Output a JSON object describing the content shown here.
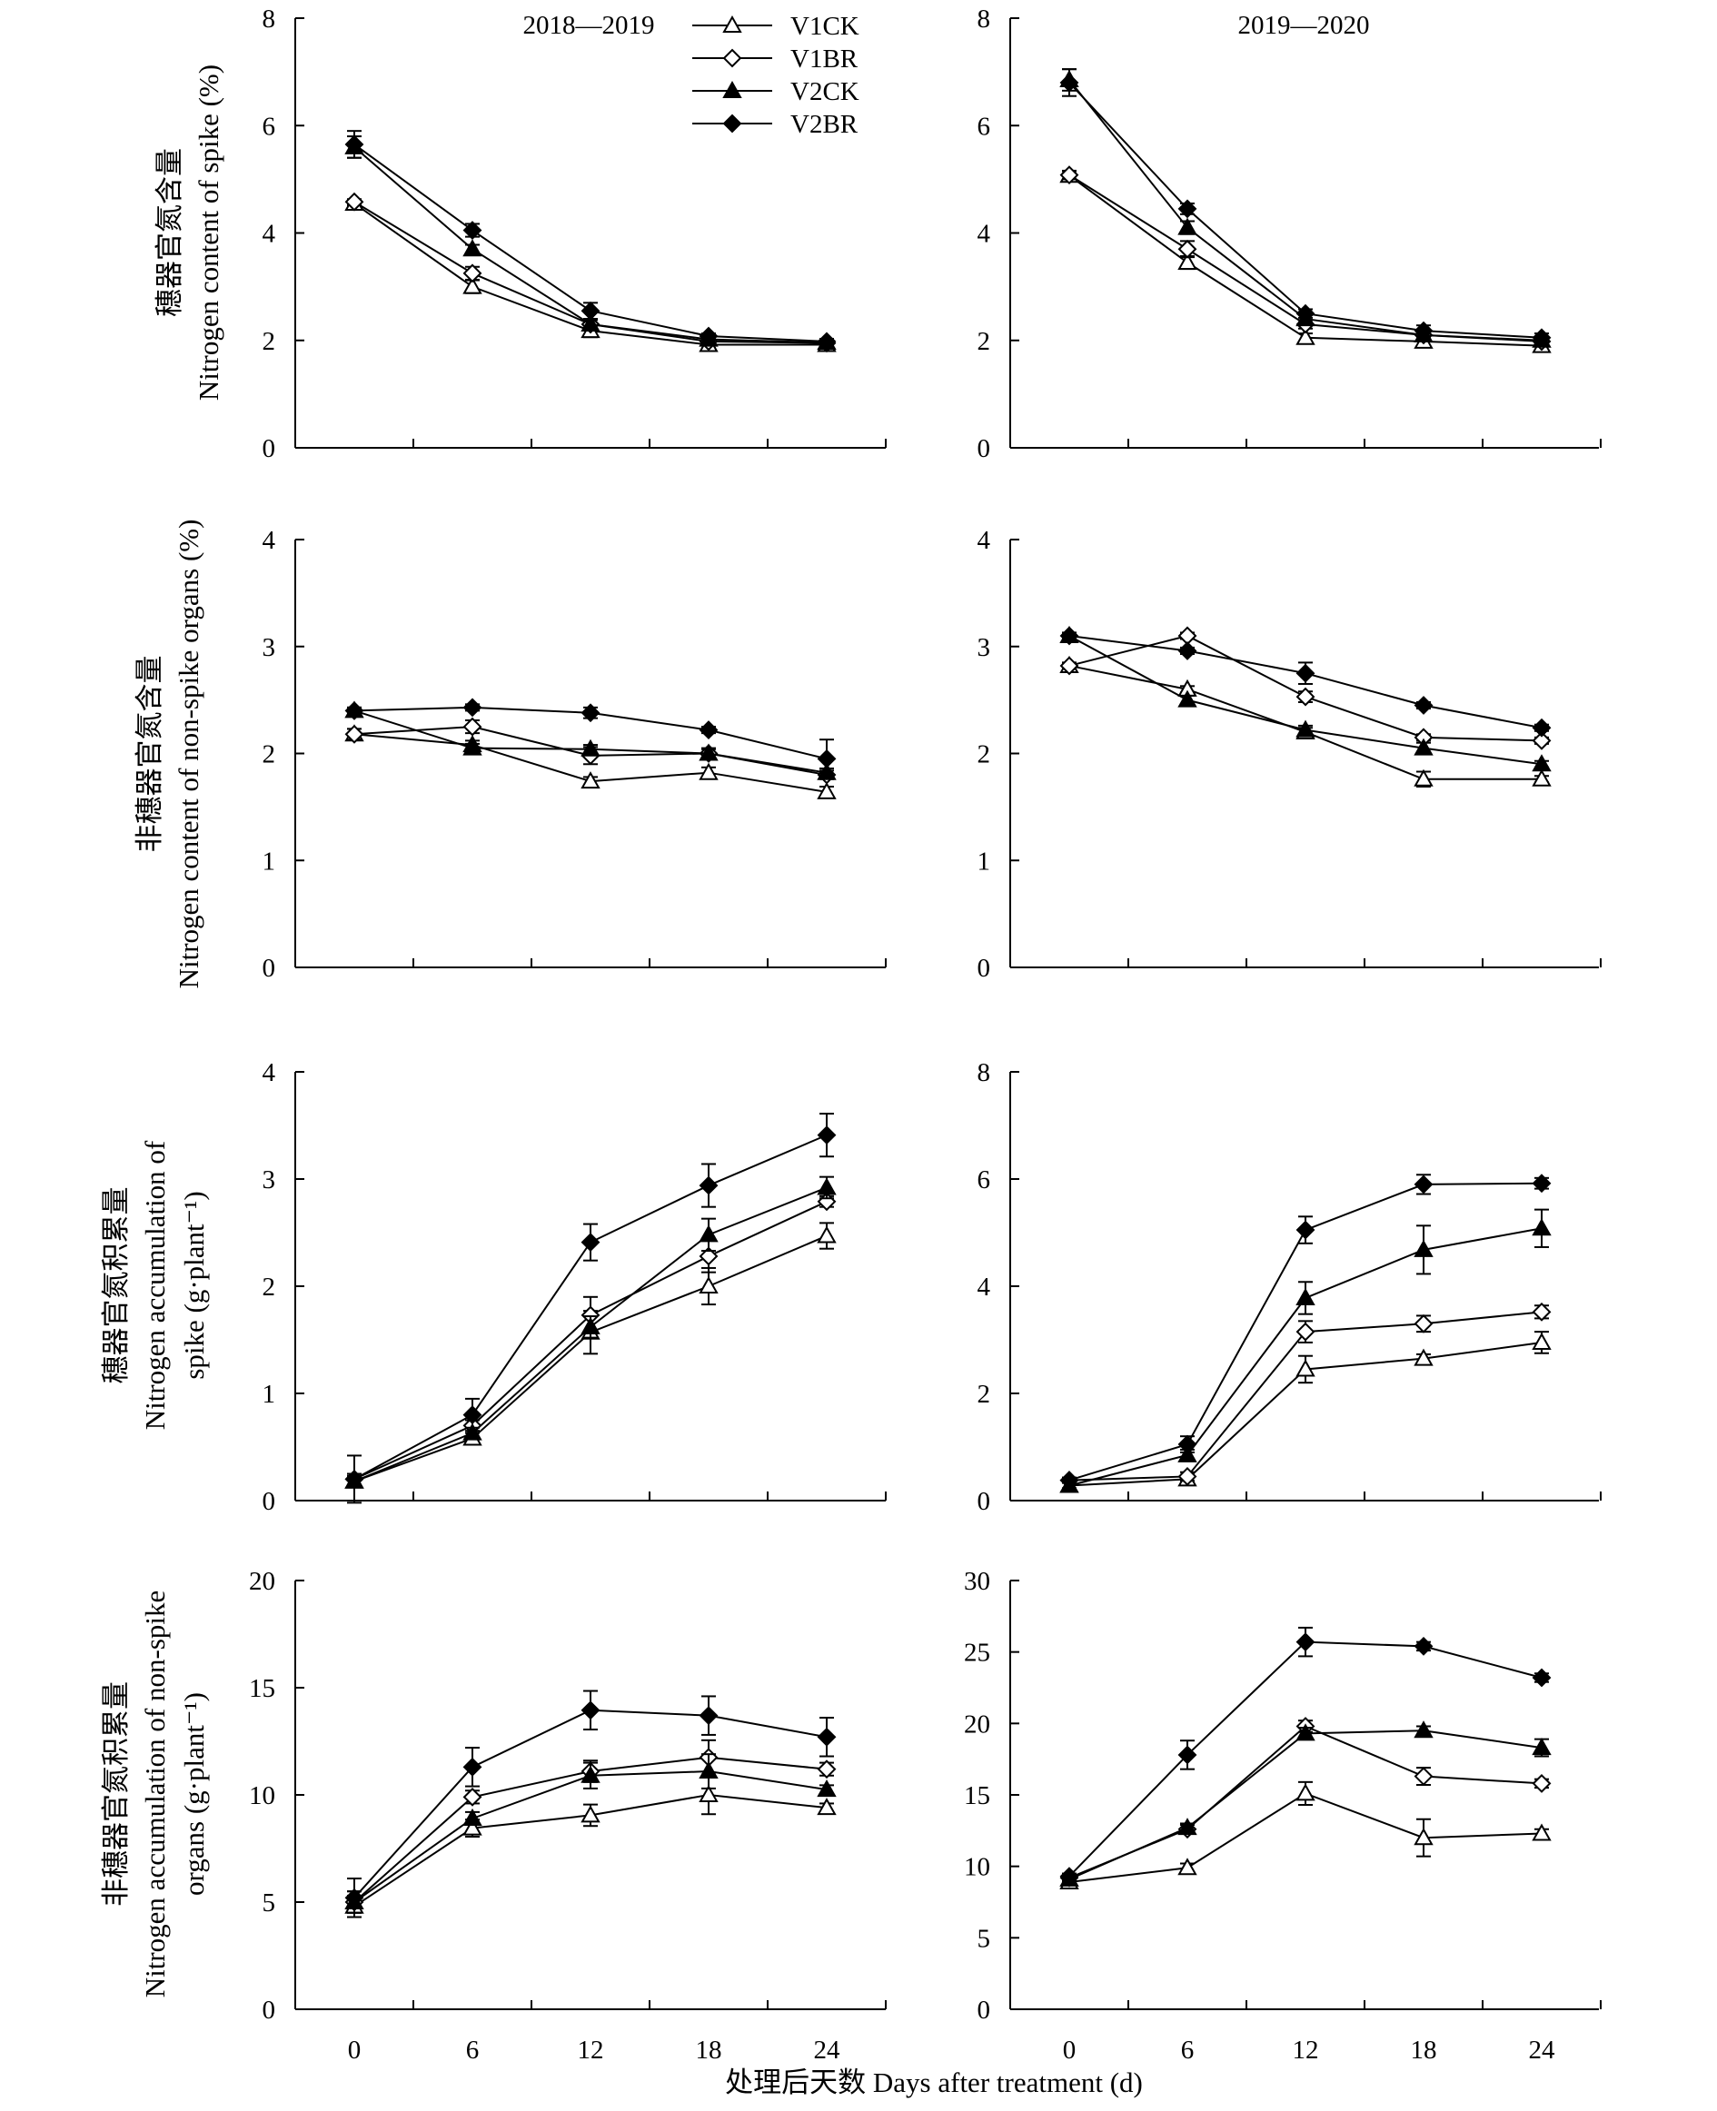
{
  "figure": {
    "x_axis_label": "处理后天数 Days after treatment (d)",
    "year_labels": [
      "2018—2019",
      "2019—2020"
    ],
    "legend": [
      "V1CK",
      "V1BR",
      "V2CK",
      "V2BR"
    ],
    "row_ylabels": [
      [
        "穗器官氮含量",
        "Nitrogen content of spike (%)"
      ],
      [
        "非穗器官氮含量",
        "Nitrogen content of non-spike organs (%)"
      ],
      [
        "穗器官氮积累量",
        "Nitrogen accumulation of",
        "spike (g·plant⁻¹)"
      ],
      [
        "非穗器官氮积累量",
        "Nitrogen accumulation of non-spike",
        "organs (g·plant⁻¹)"
      ]
    ]
  },
  "series_styles": [
    {
      "name": "V1CK",
      "marker": "triangle-open"
    },
    {
      "name": "V1BR",
      "marker": "diamond-open"
    },
    {
      "name": "V2CK",
      "marker": "triangle-filled"
    },
    {
      "name": "V2BR",
      "marker": "diamond-filled"
    }
  ],
  "chart_data": [
    {
      "type": "line",
      "panel": "2018—2019",
      "x": [
        0,
        6,
        12,
        18,
        24
      ],
      "ylim": [
        0,
        8
      ],
      "yticks": [
        0,
        2,
        4,
        6,
        8
      ],
      "series": [
        {
          "name": "V1CK",
          "values": [
            4.55,
            3.0,
            2.18,
            1.92,
            1.92
          ],
          "errors": [
            0.05,
            0.12,
            0.12,
            0.06,
            0.06
          ]
        },
        {
          "name": "V1BR",
          "values": [
            4.58,
            3.25,
            2.3,
            1.98,
            1.95
          ],
          "errors": [
            0.05,
            0.12,
            0.08,
            0.06,
            0.05
          ]
        },
        {
          "name": "V2CK",
          "values": [
            5.6,
            3.7,
            2.3,
            2.02,
            1.96
          ],
          "errors": [
            0.2,
            0.08,
            0.1,
            0.06,
            0.05
          ]
        },
        {
          "name": "V2BR",
          "values": [
            5.65,
            4.05,
            2.55,
            2.08,
            1.98
          ],
          "errors": [
            0.25,
            0.12,
            0.15,
            0.05,
            0.05
          ]
        }
      ]
    },
    {
      "type": "line",
      "panel": "2019—2020",
      "x": [
        0,
        6,
        12,
        18,
        24
      ],
      "ylim": [
        0,
        8
      ],
      "yticks": [
        0,
        2,
        4,
        6,
        8
      ],
      "series": [
        {
          "name": "V1CK",
          "values": [
            5.07,
            3.45,
            2.05,
            1.98,
            1.9
          ],
          "errors": [
            0.08,
            0.12,
            0.08,
            0.08,
            0.08
          ]
        },
        {
          "name": "V1BR",
          "values": [
            5.08,
            3.7,
            2.3,
            2.1,
            1.98
          ],
          "errors": [
            0.08,
            0.15,
            0.08,
            0.08,
            0.06
          ]
        },
        {
          "name": "V2CK",
          "values": [
            6.85,
            4.1,
            2.4,
            2.1,
            2.0
          ],
          "errors": [
            0.2,
            0.12,
            0.08,
            0.08,
            0.06
          ]
        },
        {
          "name": "V2BR",
          "values": [
            6.8,
            4.45,
            2.5,
            2.18,
            2.05
          ],
          "errors": [
            0.25,
            0.1,
            0.08,
            0.1,
            0.08
          ]
        }
      ]
    },
    {
      "type": "line",
      "panel": "2018—2019",
      "x": [
        0,
        6,
        12,
        18,
        24
      ],
      "ylim": [
        0,
        4
      ],
      "yticks": [
        0,
        1,
        2,
        3,
        4
      ],
      "series": [
        {
          "name": "V1CK",
          "values": [
            2.18,
            2.08,
            1.74,
            1.82,
            1.64
          ],
          "errors": [
            0.05,
            0.04,
            0.04,
            0.05,
            0.05
          ]
        },
        {
          "name": "V1BR",
          "values": [
            2.18,
            2.25,
            1.98,
            2.0,
            1.8
          ],
          "errors": [
            0.05,
            0.06,
            0.08,
            0.05,
            0.04
          ]
        },
        {
          "name": "V2CK",
          "values": [
            2.4,
            2.05,
            2.04,
            2.0,
            1.82
          ],
          "errors": [
            0.03,
            0.04,
            0.04,
            0.04,
            0.04
          ]
        },
        {
          "name": "V2BR",
          "values": [
            2.4,
            2.43,
            2.38,
            2.22,
            1.95
          ],
          "errors": [
            0.03,
            0.03,
            0.05,
            0.03,
            0.18
          ]
        }
      ]
    },
    {
      "type": "line",
      "panel": "2019—2020",
      "x": [
        0,
        6,
        12,
        18,
        24
      ],
      "ylim": [
        0,
        4
      ],
      "yticks": [
        0,
        1,
        2,
        3,
        4
      ],
      "series": [
        {
          "name": "V1CK",
          "values": [
            2.82,
            2.6,
            2.2,
            1.76,
            1.76
          ],
          "errors": [
            0.03,
            0.03,
            0.04,
            0.07,
            0.03
          ]
        },
        {
          "name": "V1BR",
          "values": [
            2.82,
            3.1,
            2.53,
            2.15,
            2.12
          ],
          "errors": [
            0.03,
            0.03,
            0.05,
            0.03,
            0.03
          ]
        },
        {
          "name": "V2CK",
          "values": [
            3.1,
            2.5,
            2.22,
            2.05,
            1.9
          ],
          "errors": [
            0.03,
            0.04,
            0.04,
            0.05,
            0.03
          ]
        },
        {
          "name": "V2BR",
          "values": [
            3.1,
            2.96,
            2.75,
            2.45,
            2.24
          ],
          "errors": [
            0.03,
            0.03,
            0.1,
            0.03,
            0.03
          ]
        }
      ]
    },
    {
      "type": "line",
      "panel": "2018—2019",
      "x": [
        0,
        6,
        12,
        18,
        24
      ],
      "ylim": [
        0,
        4
      ],
      "yticks": [
        0,
        1,
        2,
        3,
        4
      ],
      "series": [
        {
          "name": "V1CK",
          "values": [
            0.18,
            0.58,
            1.57,
            2.0,
            2.47
          ],
          "errors": [
            0.05,
            0.05,
            0.2,
            0.17,
            0.12
          ]
        },
        {
          "name": "V1BR",
          "values": [
            0.2,
            0.7,
            1.73,
            2.28,
            2.79
          ],
          "errors": [
            0.05,
            0.05,
            0.17,
            0.15,
            0.05
          ]
        },
        {
          "name": "V2CK",
          "values": [
            0.18,
            0.63,
            1.62,
            2.48,
            2.92
          ],
          "errors": [
            0.05,
            0.05,
            0.1,
            0.15,
            0.1
          ]
        },
        {
          "name": "V2BR",
          "values": [
            0.2,
            0.8,
            2.41,
            2.94,
            3.41
          ],
          "errors": [
            0.22,
            0.15,
            0.17,
            0.2,
            0.2
          ]
        }
      ]
    },
    {
      "type": "line",
      "panel": "2019—2020",
      "x": [
        0,
        6,
        12,
        18,
        24
      ],
      "ylim": [
        0,
        8
      ],
      "yticks": [
        0,
        2,
        4,
        6,
        8
      ],
      "series": [
        {
          "name": "V1CK",
          "values": [
            0.28,
            0.4,
            2.45,
            2.65,
            2.95
          ],
          "errors": [
            0.05,
            0.08,
            0.25,
            0.08,
            0.2
          ]
        },
        {
          "name": "V1BR",
          "values": [
            0.38,
            0.45,
            3.15,
            3.3,
            3.52
          ],
          "errors": [
            0.05,
            0.08,
            0.2,
            0.15,
            0.12
          ]
        },
        {
          "name": "V2CK",
          "values": [
            0.28,
            0.85,
            3.78,
            4.68,
            5.08
          ],
          "errors": [
            0.05,
            0.1,
            0.3,
            0.45,
            0.35
          ]
        },
        {
          "name": "V2BR",
          "values": [
            0.38,
            1.05,
            5.05,
            5.9,
            5.92
          ],
          "errors": [
            0.05,
            0.15,
            0.25,
            0.18,
            0.1
          ]
        }
      ]
    },
    {
      "type": "line",
      "panel": "2018—2019",
      "x": [
        0,
        6,
        12,
        18,
        24
      ],
      "ylim": [
        0,
        20
      ],
      "yticks": [
        0,
        5,
        10,
        15,
        20
      ],
      "series": [
        {
          "name": "V1CK",
          "values": [
            4.8,
            8.45,
            9.05,
            10.0,
            9.4
          ],
          "errors": [
            0.5,
            0.4,
            0.5,
            0.9,
            0.2
          ]
        },
        {
          "name": "V1BR",
          "values": [
            5.0,
            9.9,
            11.1,
            11.75,
            11.2
          ],
          "errors": [
            0.5,
            0.3,
            0.5,
            0.8,
            0.3
          ]
        },
        {
          "name": "V2CK",
          "values": [
            5.0,
            8.9,
            10.9,
            11.1,
            10.25
          ],
          "errors": [
            0.5,
            0.3,
            0.6,
            0.8,
            0.2
          ]
        },
        {
          "name": "V2BR",
          "values": [
            5.2,
            11.3,
            13.95,
            13.7,
            12.7
          ],
          "errors": [
            0.9,
            0.9,
            0.9,
            0.9,
            0.9
          ]
        }
      ]
    },
    {
      "type": "line",
      "panel": "2019—2020",
      "x": [
        0,
        6,
        12,
        18,
        24
      ],
      "ylim": [
        0,
        30
      ],
      "yticks": [
        0,
        5,
        10,
        15,
        20,
        25,
        30
      ],
      "series": [
        {
          "name": "V1CK",
          "values": [
            8.9,
            9.9,
            15.1,
            12.0,
            12.3
          ],
          "errors": [
            0.2,
            0.3,
            0.8,
            1.3,
            0.3
          ]
        },
        {
          "name": "V1BR",
          "values": [
            9.2,
            12.6,
            19.8,
            16.3,
            15.8
          ],
          "errors": [
            0.2,
            0.3,
            0.4,
            0.6,
            0.3
          ]
        },
        {
          "name": "V2CK",
          "values": [
            9.1,
            12.7,
            19.3,
            19.5,
            18.3
          ],
          "errors": [
            0.2,
            0.3,
            0.4,
            0.3,
            0.6
          ]
        },
        {
          "name": "V2BR",
          "values": [
            9.3,
            17.8,
            25.7,
            25.4,
            23.2
          ],
          "errors": [
            0.2,
            1.0,
            1.0,
            0.3,
            0.3
          ]
        }
      ]
    }
  ]
}
